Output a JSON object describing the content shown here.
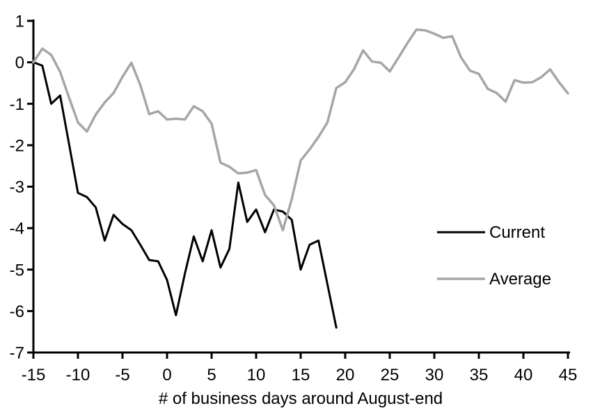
{
  "chart_data": {
    "type": "line",
    "title": "",
    "xlabel": "# of business days around August-end",
    "ylabel": "",
    "xlim": [
      -15,
      45
    ],
    "ylim": [
      -7,
      1
    ],
    "xticks": [
      -15,
      -10,
      -5,
      0,
      5,
      10,
      15,
      20,
      25,
      30,
      35,
      40,
      45
    ],
    "yticks": [
      1,
      0,
      -1,
      -2,
      -3,
      -4,
      -5,
      -6,
      -7
    ],
    "grid": false,
    "legend_position": "right-middle",
    "axis_color": "#000000",
    "series": [
      {
        "name": "Current",
        "color": "#000000",
        "width": 3,
        "x_start": -15,
        "x_step": 1,
        "values": [
          0,
          -0.08,
          -1.0,
          -0.8,
          -1.97,
          -3.15,
          -3.25,
          -3.5,
          -4.3,
          -3.68,
          -3.9,
          -4.05,
          -4.4,
          -4.77,
          -4.8,
          -5.25,
          -6.1,
          -5.1,
          -4.2,
          -4.8,
          -4.05,
          -4.95,
          -4.5,
          -2.9,
          -3.85,
          -3.55,
          -4.1,
          -3.55,
          -3.6,
          -3.8,
          -5.0,
          -4.4,
          -4.3,
          -5.35,
          -6.4
        ]
      },
      {
        "name": "Average",
        "color": "#a6a6a6",
        "width": 3.5,
        "x_start": -15,
        "x_step": 1,
        "values": [
          0,
          0.33,
          0.18,
          -0.23,
          -0.85,
          -1.45,
          -1.67,
          -1.26,
          -0.97,
          -0.74,
          -0.35,
          -0.01,
          -0.55,
          -1.25,
          -1.18,
          -1.38,
          -1.36,
          -1.38,
          -1.06,
          -1.18,
          -1.48,
          -2.42,
          -2.52,
          -2.68,
          -2.66,
          -2.6,
          -3.2,
          -3.45,
          -4.05,
          -3.3,
          -2.37,
          -2.1,
          -1.8,
          -1.45,
          -0.62,
          -0.48,
          -0.16,
          0.29,
          0.02,
          -0.01,
          -0.22,
          0.12,
          0.47,
          0.79,
          0.77,
          0.69,
          0.59,
          0.63,
          0.12,
          -0.2,
          -0.28,
          -0.64,
          -0.74,
          -0.95,
          -0.43,
          -0.49,
          -0.48,
          -0.36,
          -0.17,
          -0.48,
          -0.75
        ]
      }
    ]
  }
}
